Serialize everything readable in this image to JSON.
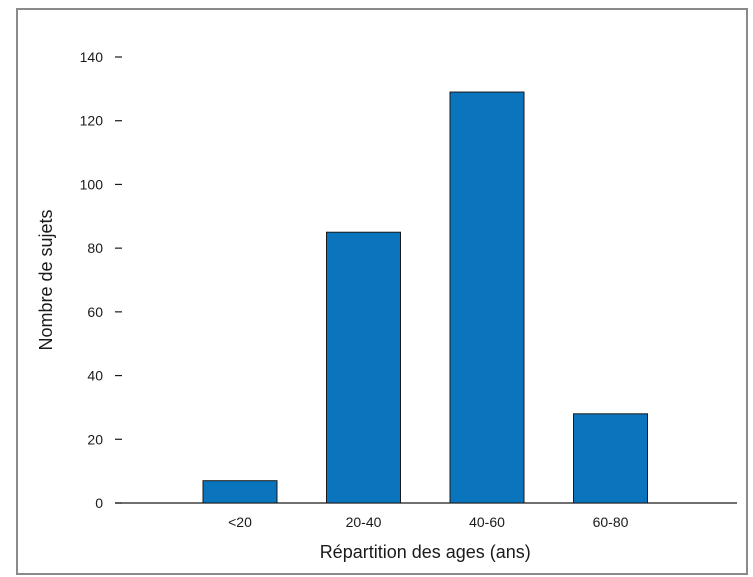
{
  "chart_data": {
    "type": "bar",
    "title": "",
    "xlabel": "Répartition des ages (ans)",
    "ylabel": "Nombre de sujets",
    "categories": [
      "<20",
      "20-40",
      "40-60",
      "60-80"
    ],
    "values": [
      7,
      85,
      129,
      28
    ],
    "ylim": [
      0,
      140
    ],
    "yticks": [
      0,
      20,
      40,
      60,
      80,
      100,
      120,
      140
    ],
    "grid": false,
    "legend": "none",
    "bar_color": "#0a74bc",
    "bar_edge_color": "#1a1a1a"
  }
}
